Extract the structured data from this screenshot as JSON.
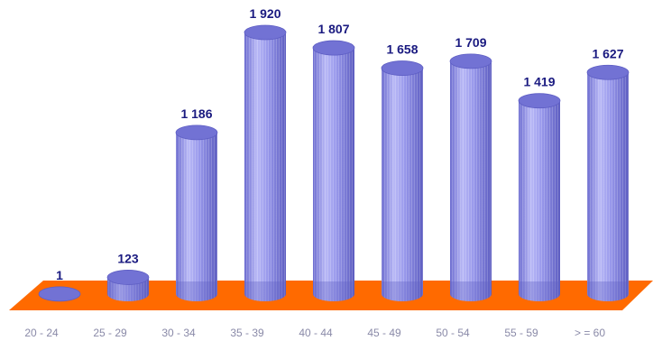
{
  "chart_data": {
    "type": "bar",
    "style": "3d-cylinder",
    "title": "",
    "xlabel": "",
    "ylabel": "",
    "categories": [
      "20 - 24",
      "25 - 29",
      "30 - 34",
      "35 - 39",
      "40 - 44",
      "45 - 49",
      "50 - 54",
      "55 - 59",
      "> = 60"
    ],
    "values": [
      1,
      123,
      1186,
      1920,
      1807,
      1658,
      1709,
      1419,
      1627
    ],
    "value_labels": [
      "1",
      "123",
      "1 186",
      "1 920",
      "1 807",
      "1 658",
      "1 709",
      "1 419",
      "1 627"
    ],
    "ylim": [
      0,
      1920
    ],
    "grid": false,
    "legend": "none",
    "colors": {
      "bar_body": "#8f8fe8",
      "bar_light": "#d6d6fb",
      "bar_dark": "#5e5ec4",
      "bar_top": "#7272d4",
      "floor": "#ff6a00",
      "floor_edge": "#e05a00",
      "value_label": "#1a1a80",
      "tick_label": "#8a8aa8"
    }
  }
}
